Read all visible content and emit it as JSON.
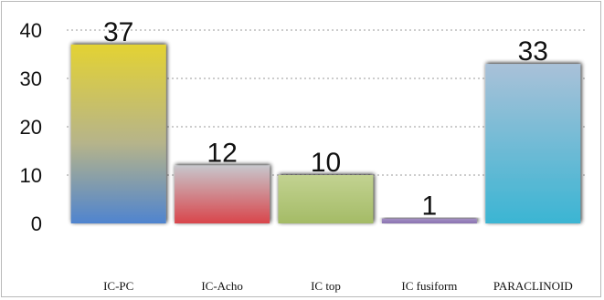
{
  "chart_data": {
    "type": "bar",
    "categories": [
      "IC-PC",
      "IC-Acho",
      "IC top",
      "IC fusiform",
      "PARACLINOID"
    ],
    "values": [
      37,
      12,
      10,
      1,
      33
    ],
    "ylim": [
      0,
      40
    ],
    "yticks": [
      0,
      10,
      20,
      30,
      40
    ],
    "grid": true,
    "title": "",
    "xlabel": "",
    "ylabel": ""
  }
}
